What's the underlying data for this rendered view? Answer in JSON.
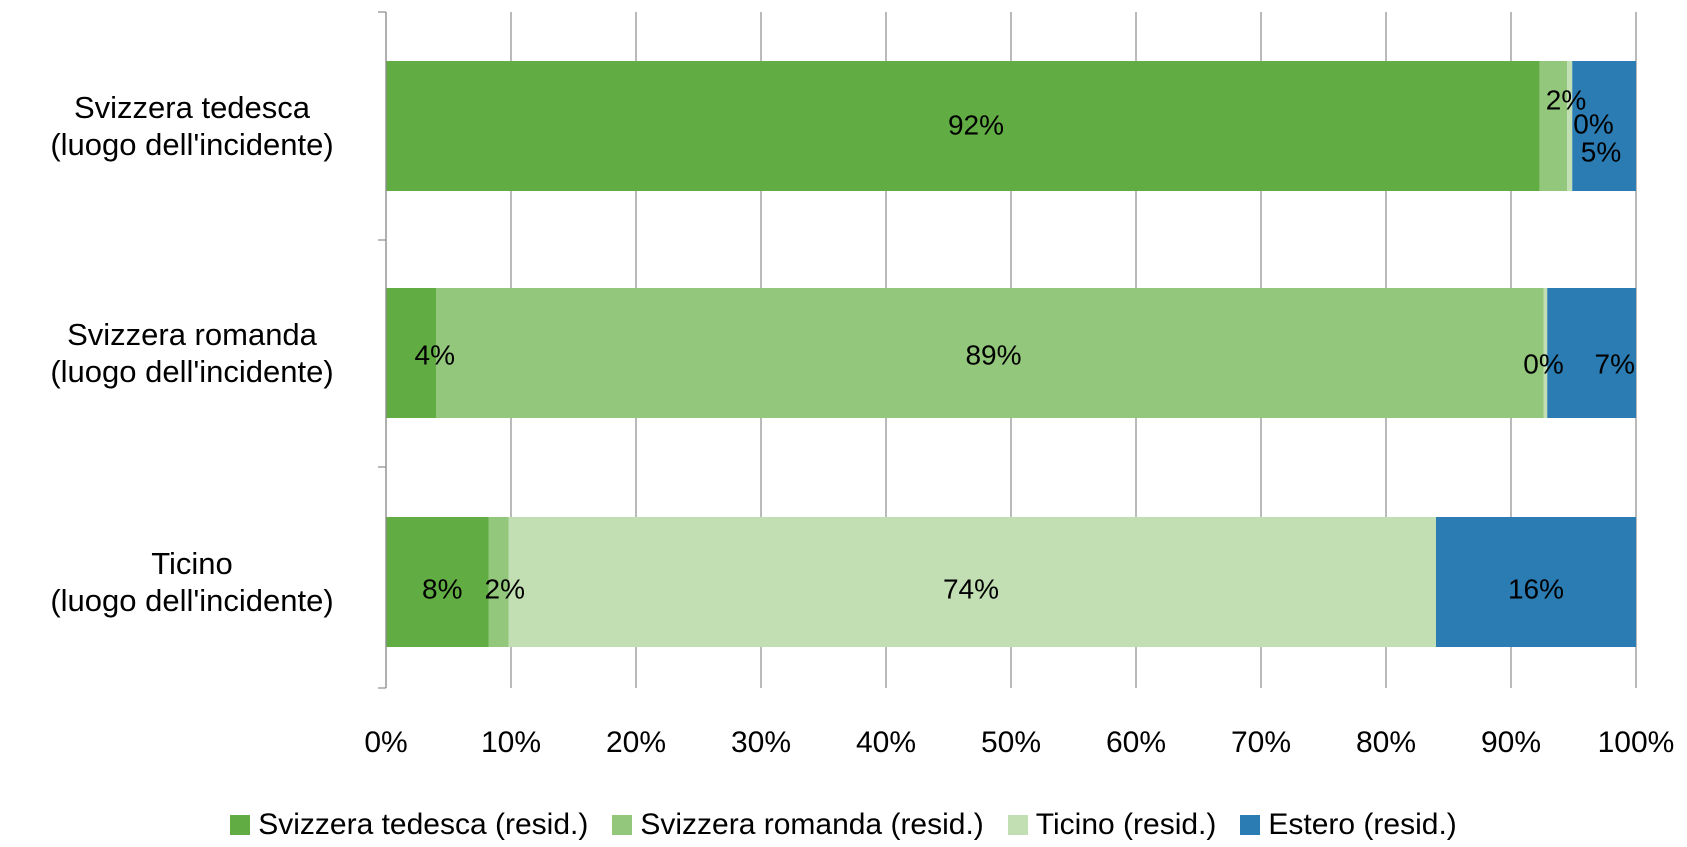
{
  "chart_data": {
    "type": "bar",
    "orientation": "horizontal",
    "stacked": "percent",
    "categories": [
      [
        "Svizzera tedesca",
        "(luogo dell'incidente)"
      ],
      [
        "Svizzera romanda",
        "(luogo dell'incidente)"
      ],
      [
        "Ticino",
        "(luogo dell'incidente)"
      ]
    ],
    "series": [
      {
        "name": "Svizzera tedesca (resid.)",
        "color": "#62AC44",
        "values": [
          92.3,
          4.0,
          8.2
        ]
      },
      {
        "name": "Svizzera romanda (resid.)",
        "color": "#92C77C",
        "values": [
          2.2,
          88.6,
          1.6
        ]
      },
      {
        "name": "Ticino (resid.)",
        "color": "#C1DFB3",
        "values": [
          0.4,
          0.3,
          74.2
        ]
      },
      {
        "name": "Estero (resid.)",
        "color": "#2A7CB3",
        "values": [
          5.1,
          7.1,
          16.0
        ]
      }
    ],
    "data_labels": [
      [
        "92%",
        "2%",
        "0%",
        "5%"
      ],
      [
        "4%",
        "89%",
        "0%",
        "7%"
      ],
      [
        "8%",
        "2%",
        "74%",
        "16%"
      ]
    ],
    "x_ticks": [
      "0%",
      "10%",
      "20%",
      "30%",
      "40%",
      "50%",
      "60%",
      "70%",
      "80%",
      "90%",
      "100%"
    ],
    "xlim": [
      0,
      100
    ],
    "grid": "vertical",
    "legend_position": "bottom",
    "title": "",
    "xlabel": "",
    "ylabel": ""
  }
}
